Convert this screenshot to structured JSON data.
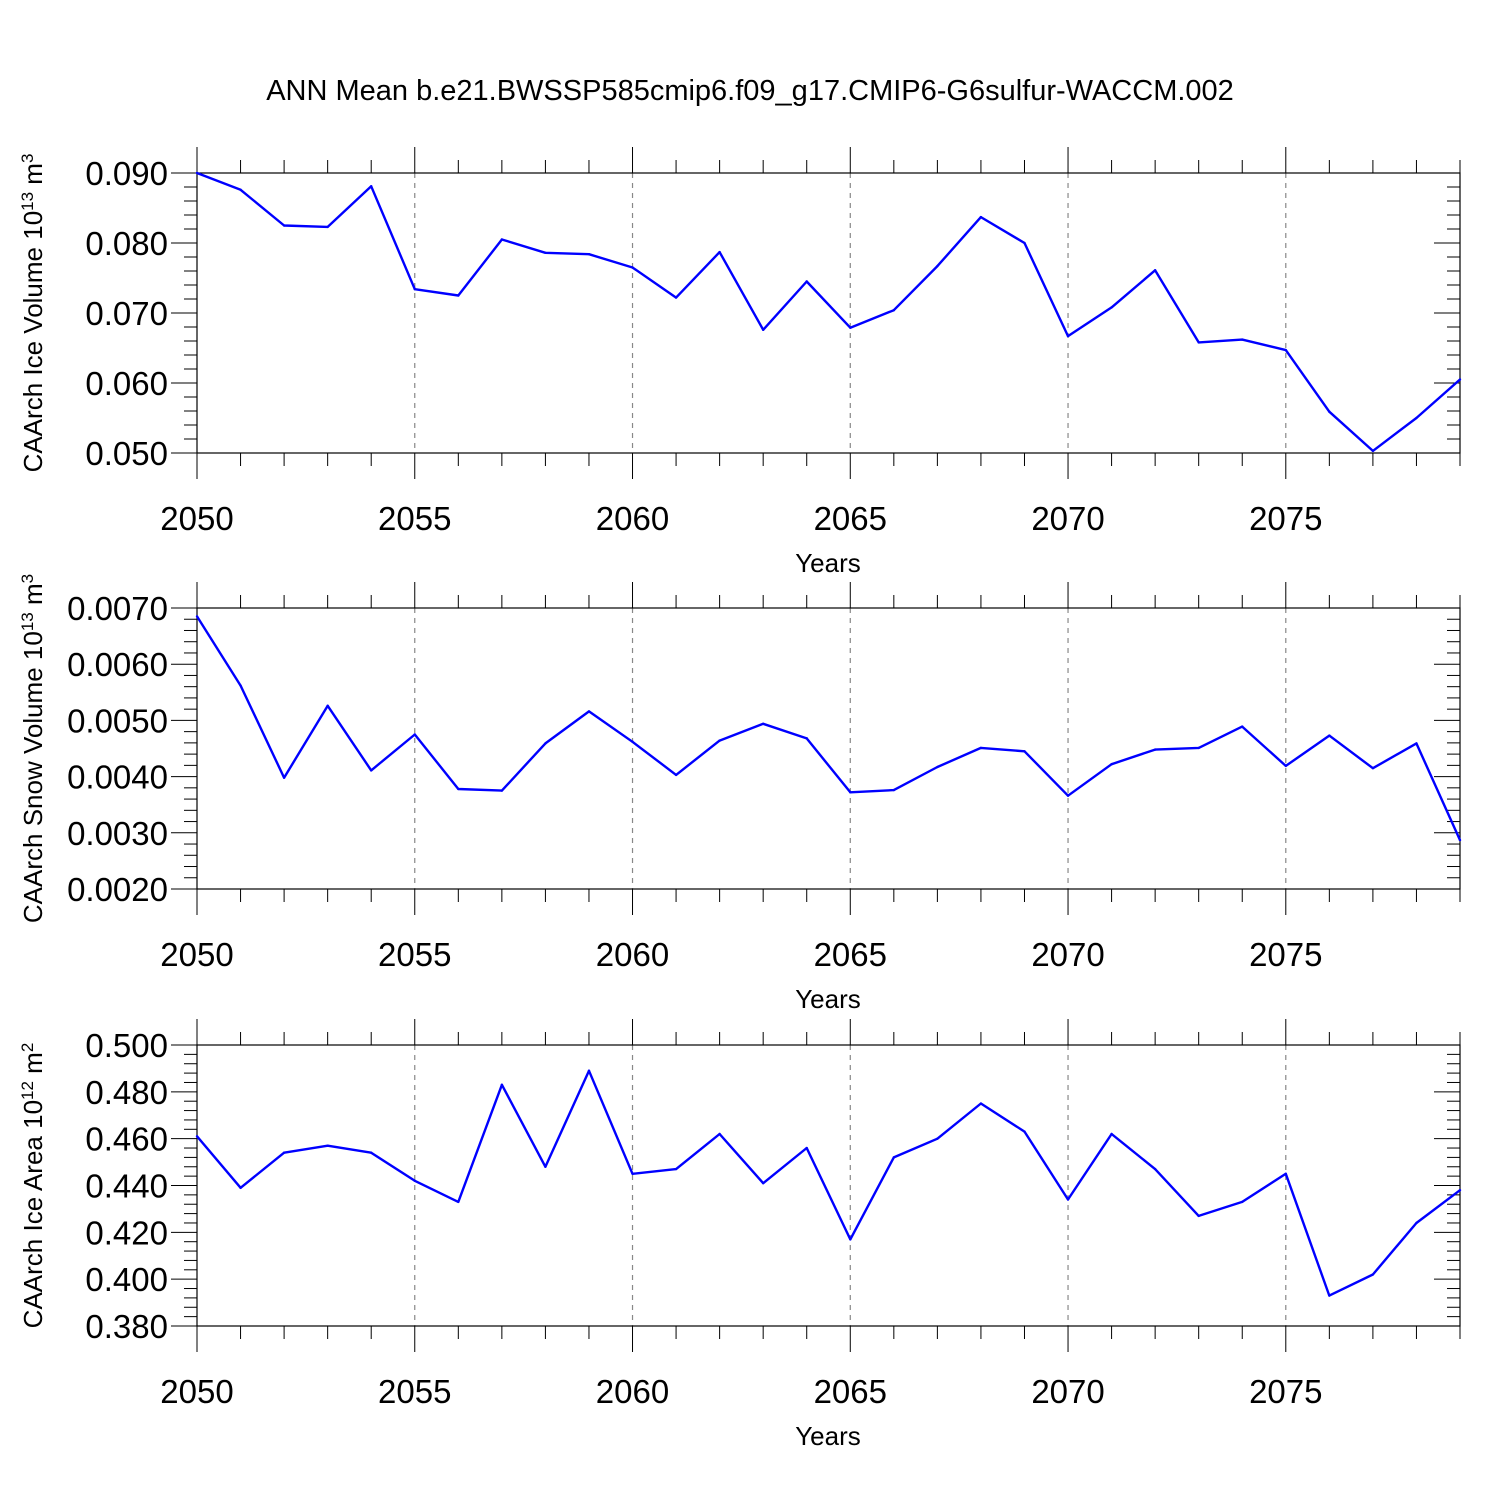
{
  "title": "ANN Mean b.e21.BWSSP585cmip6.f09_g17.CMIP6-G6sulfur-WACCM.002",
  "chart_data": [
    {
      "type": "line",
      "xlabel": "Years",
      "ylabel": {
        "base": "CAArch Ice Volume 10",
        "exp": "13",
        "unit": " m",
        "unit_exp": "3"
      },
      "xlim": [
        2050,
        2079
      ],
      "ylim": [
        0.05,
        0.09
      ],
      "xticks": [
        2050,
        2055,
        2060,
        2065,
        2070,
        2075
      ],
      "xtick_labels": [
        "2050",
        "2055",
        "2060",
        "2065",
        "2070",
        "2075"
      ],
      "yticks": [
        0.05,
        0.06,
        0.07,
        0.08,
        0.09
      ],
      "ytick_labels": [
        "0.050",
        "0.060",
        "0.070",
        "0.080",
        "0.090"
      ],
      "line_color": "#0000ff",
      "grid": "dashed vertical at major x ticks",
      "x": [
        2050,
        2051,
        2052,
        2053,
        2054,
        2055,
        2056,
        2057,
        2058,
        2059,
        2060,
        2061,
        2062,
        2063,
        2064,
        2065,
        2066,
        2067,
        2068,
        2069,
        2070,
        2071,
        2072,
        2073,
        2074,
        2075,
        2076,
        2077,
        2078,
        2079
      ],
      "y": [
        0.09,
        0.0876,
        0.0825,
        0.0823,
        0.0881,
        0.0734,
        0.0725,
        0.0805,
        0.0786,
        0.0784,
        0.0765,
        0.0722,
        0.0787,
        0.0676,
        0.0745,
        0.0679,
        0.0704,
        0.0767,
        0.0837,
        0.08,
        0.0667,
        0.0708,
        0.0761,
        0.0658,
        0.0662,
        0.0647,
        0.0559,
        0.0503,
        0.055,
        0.0605
      ]
    },
    {
      "type": "line",
      "xlabel": "Years",
      "ylabel": {
        "base": "CAArch Snow Volume 10",
        "exp": "13",
        "unit": " m",
        "unit_exp": "3"
      },
      "xlim": [
        2050,
        2079
      ],
      "ylim": [
        0.002,
        0.007
      ],
      "xticks": [
        2050,
        2055,
        2060,
        2065,
        2070,
        2075
      ],
      "xtick_labels": [
        "2050",
        "2055",
        "2060",
        "2065",
        "2070",
        "2075"
      ],
      "yticks": [
        0.002,
        0.003,
        0.004,
        0.005,
        0.006,
        0.007
      ],
      "ytick_labels": [
        "0.0020",
        "0.0030",
        "0.0040",
        "0.0050",
        "0.0060",
        "0.0070"
      ],
      "line_color": "#0000ff",
      "grid": "dashed vertical at major x ticks",
      "x": [
        2050,
        2051,
        2052,
        2053,
        2054,
        2055,
        2056,
        2057,
        2058,
        2059,
        2060,
        2061,
        2062,
        2063,
        2064,
        2065,
        2066,
        2067,
        2068,
        2069,
        2070,
        2071,
        2072,
        2073,
        2074,
        2075,
        2076,
        2077,
        2078,
        2079
      ],
      "y": [
        0.00685,
        0.00562,
        0.00398,
        0.00526,
        0.00411,
        0.00475,
        0.00378,
        0.00375,
        0.00459,
        0.00516,
        0.00462,
        0.00403,
        0.00464,
        0.00494,
        0.00468,
        0.00372,
        0.00376,
        0.00417,
        0.00451,
        0.00445,
        0.00366,
        0.00422,
        0.00448,
        0.00451,
        0.00489,
        0.00419,
        0.00473,
        0.00415,
        0.00459,
        0.00287
      ]
    },
    {
      "type": "line",
      "xlabel": "Years",
      "ylabel": {
        "base": "CAArch Ice Area 10",
        "exp": "12",
        "unit": " m",
        "unit_exp": "2"
      },
      "xlim": [
        2050,
        2079
      ],
      "ylim": [
        0.38,
        0.5
      ],
      "xticks": [
        2050,
        2055,
        2060,
        2065,
        2070,
        2075
      ],
      "xtick_labels": [
        "2050",
        "2055",
        "2060",
        "2065",
        "2070",
        "2075"
      ],
      "yticks": [
        0.38,
        0.4,
        0.42,
        0.44,
        0.46,
        0.48,
        0.5
      ],
      "ytick_labels": [
        "0.380",
        "0.400",
        "0.420",
        "0.440",
        "0.460",
        "0.480",
        "0.500"
      ],
      "line_color": "#0000ff",
      "grid": "dashed vertical at major x ticks",
      "x": [
        2050,
        2051,
        2052,
        2053,
        2054,
        2055,
        2056,
        2057,
        2058,
        2059,
        2060,
        2061,
        2062,
        2063,
        2064,
        2065,
        2066,
        2067,
        2068,
        2069,
        2070,
        2071,
        2072,
        2073,
        2074,
        2075,
        2076,
        2077,
        2078,
        2079
      ],
      "y": [
        0.461,
        0.439,
        0.454,
        0.457,
        0.454,
        0.442,
        0.433,
        0.483,
        0.448,
        0.489,
        0.445,
        0.447,
        0.462,
        0.441,
        0.456,
        0.417,
        0.452,
        0.46,
        0.475,
        0.463,
        0.434,
        0.462,
        0.447,
        0.427,
        0.433,
        0.445,
        0.393,
        0.402,
        0.424,
        0.438
      ]
    }
  ]
}
